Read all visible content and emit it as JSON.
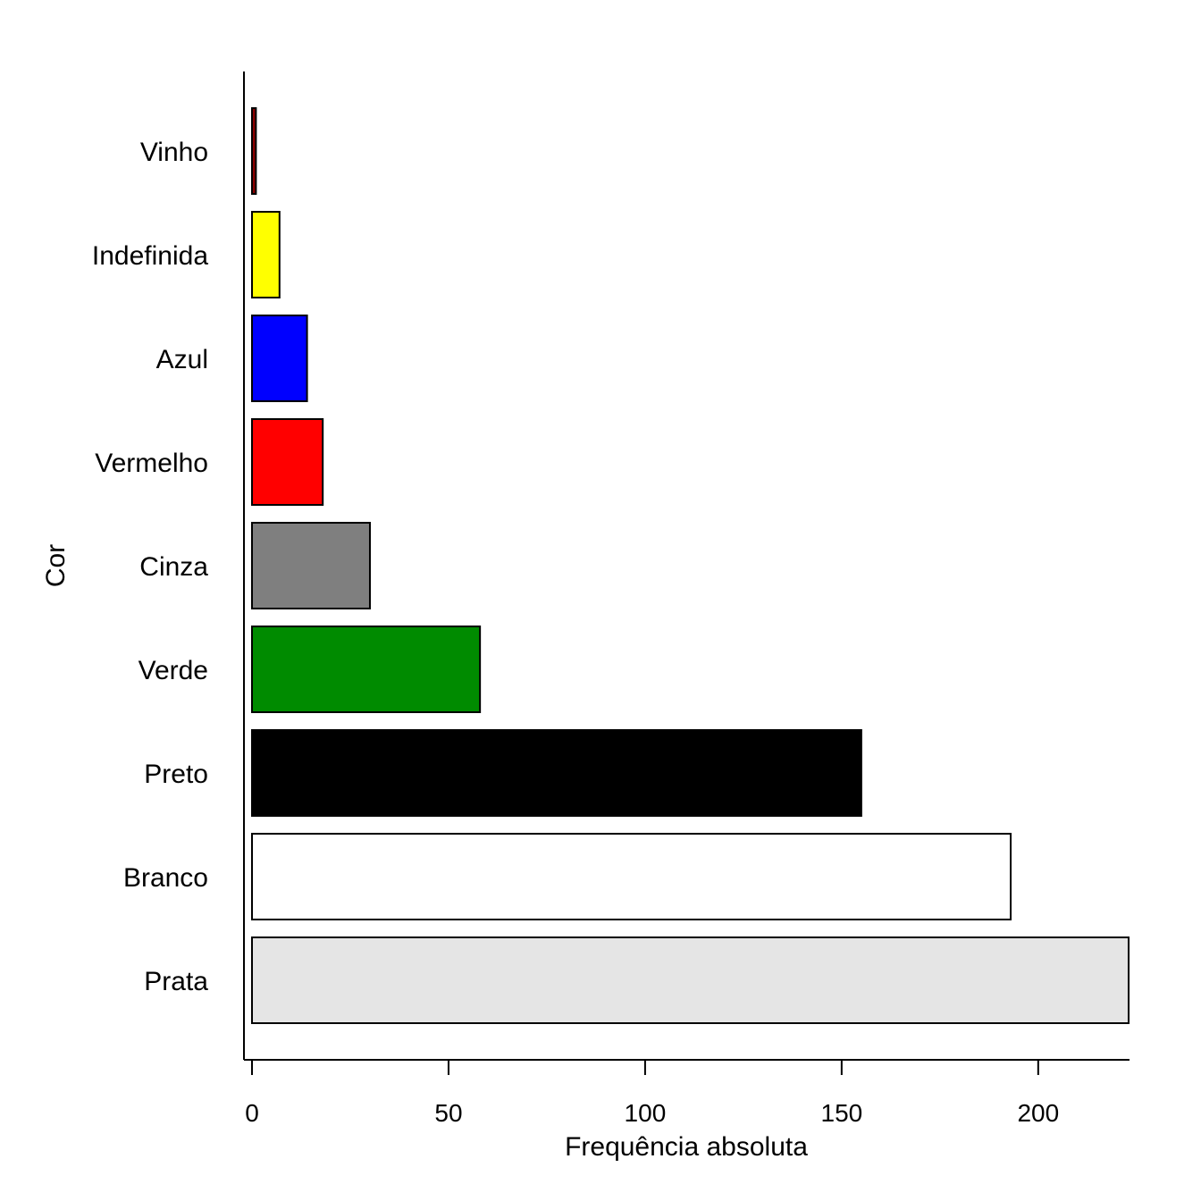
{
  "chart_data": {
    "type": "bar",
    "orientation": "horizontal",
    "categories": [
      "Prata",
      "Branco",
      "Preto",
      "Verde",
      "Cinza",
      "Vermelho",
      "Azul",
      "Indefinida",
      "Vinho"
    ],
    "values": [
      223,
      193,
      155,
      58,
      30,
      18,
      14,
      7,
      1
    ],
    "colors": [
      "#e5e5e5",
      "#ffffff",
      "#000000",
      "#008b00",
      "#7f7f7f",
      "#ff0000",
      "#0000ff",
      "#ffff00",
      "#8b0000"
    ],
    "xlabel": "Frequência absoluta",
    "ylabel": "Cor",
    "xlim": [
      0,
      223
    ],
    "xticks": [
      0,
      50,
      100,
      150,
      200
    ],
    "grid": false,
    "legend": "none"
  }
}
